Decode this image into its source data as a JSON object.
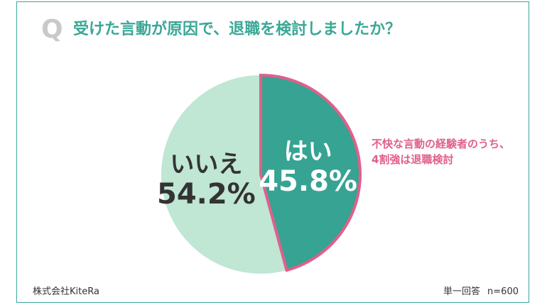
{
  "question": {
    "mark": "Q",
    "text": "受けた言動が原因で、退職を検討しましたか？"
  },
  "chart_data": {
    "type": "pie",
    "slices": [
      {
        "label": "はい",
        "value": 45.8,
        "value_label": "45.8%",
        "color": "#36a393",
        "highlight_border": "#e0608a"
      },
      {
        "label": "いいえ",
        "value": 54.2,
        "value_label": "54.2%",
        "color": "#c0e6d4"
      }
    ]
  },
  "annotation": {
    "line1": "不快な言動の経験者のうち、",
    "line2": "4割強は退職検討"
  },
  "footer": {
    "company": "株式会社KiteRa",
    "answer_type": "単一回答",
    "sample": "n=600"
  },
  "colors": {
    "accent": "#3aa796",
    "highlight": "#e0608a",
    "q_mark": "#c9c9c9"
  }
}
